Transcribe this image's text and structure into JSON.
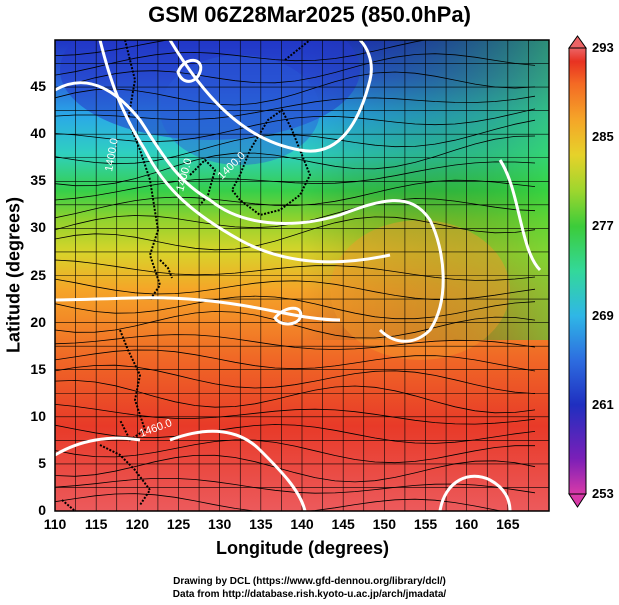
{
  "title": "GSM 06Z28Mar2025 (850.0hPa)",
  "map": {
    "xlabel": "Longitude (degrees)",
    "ylabel": "Latitude  (degrees)",
    "lon_range": [
      110,
      170
    ],
    "lat_range": [
      0,
      50
    ],
    "x_ticks": [
      "110",
      "115",
      "120",
      "125",
      "130",
      "135",
      "140",
      "145",
      "150",
      "155",
      "160",
      "165"
    ],
    "y_ticks": [
      "0",
      "5",
      "10",
      "15",
      "20",
      "25",
      "30",
      "35",
      "40",
      "45"
    ],
    "contour_labels": [
      "1400.0",
      "1400.0",
      "1400.0",
      "1460.0"
    ]
  },
  "colorbar": {
    "ticks": [
      "293",
      "285",
      "277",
      "269",
      "261",
      "253"
    ],
    "min": 253,
    "max": 293,
    "colors": [
      "#d83aa8",
      "#7a1fb8",
      "#1f2fc0",
      "#2d6de0",
      "#2fb7e6",
      "#33d89a",
      "#3ccc3a",
      "#9ed62e",
      "#e6d22a",
      "#f5a528",
      "#f46a24",
      "#e83222",
      "#ec6466"
    ]
  },
  "credits": {
    "line1": "Drawing by DCL (https://www.gfd-dennou.org/library/dcl/)",
    "line2": "Data from http://database.rish.kyoto-u.ac.jp/arch/jmadata/"
  }
}
